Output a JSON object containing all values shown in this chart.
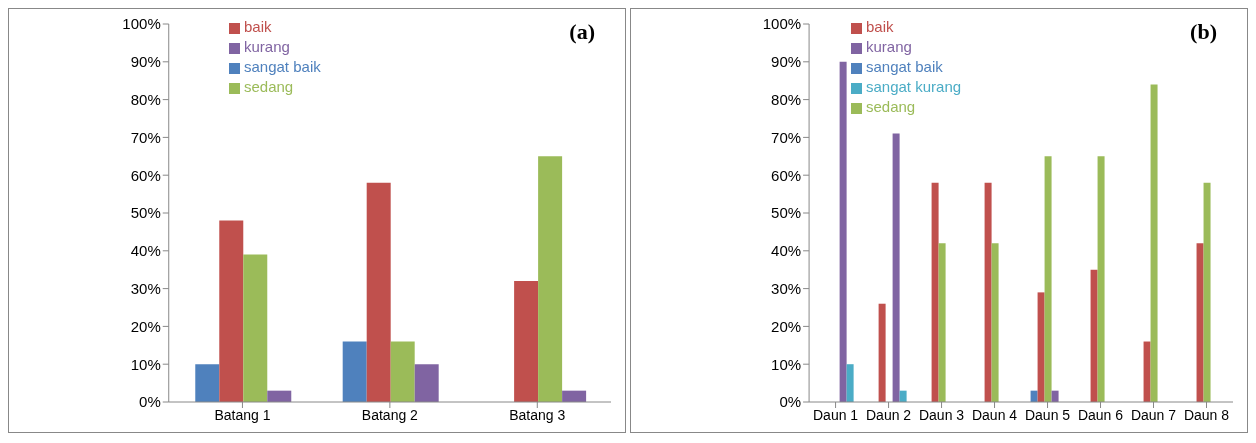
{
  "chart_data": [
    {
      "type": "bar",
      "annotations": [
        "(a)"
      ],
      "categories": [
        "Batang 1",
        "Batang 2",
        "Batang 3"
      ],
      "series": [
        {
          "name": "sangat baik",
          "color": "#4f81bd",
          "values": [
            10,
            16,
            0
          ]
        },
        {
          "name": "baik",
          "color": "#c0504d",
          "values": [
            48,
            58,
            32
          ]
        },
        {
          "name": "sedang",
          "color": "#9bbb59",
          "values": [
            39,
            16,
            65
          ]
        },
        {
          "name": "kurang",
          "color": "#8064a2",
          "values": [
            3,
            10,
            3
          ]
        }
      ],
      "ylim": [
        0,
        100
      ],
      "yticks": [
        {
          "value": 0,
          "label": "0%"
        },
        {
          "value": 10,
          "label": "10%"
        },
        {
          "value": 20,
          "label": "20%"
        },
        {
          "value": 30,
          "label": "30%"
        },
        {
          "value": 40,
          "label": "40%"
        },
        {
          "value": 50,
          "label": "50%"
        },
        {
          "value": 60,
          "label": "60%"
        },
        {
          "value": 70,
          "label": "70%"
        },
        {
          "value": 80,
          "label": "80%"
        },
        {
          "value": 90,
          "label": "90%"
        },
        {
          "value": 100,
          "label": "100%"
        }
      ],
      "grid": false,
      "legend": "top"
    },
    {
      "type": "bar",
      "annotations": [
        "(b)"
      ],
      "categories": [
        "Daun 1",
        "Daun 2",
        "Daun 3",
        "Daun 4",
        "Daun 5",
        "Daun 6",
        "Daun 7",
        "Daun 8"
      ],
      "series": [
        {
          "name": "sangat baik",
          "color": "#4f81bd",
          "values": [
            0,
            0,
            0,
            0,
            3,
            0,
            0,
            0
          ]
        },
        {
          "name": "baik",
          "color": "#c0504d",
          "values": [
            0,
            26,
            58,
            58,
            29,
            35,
            16,
            42
          ]
        },
        {
          "name": "sedang",
          "color": "#9bbb59",
          "values": [
            0,
            0,
            42,
            42,
            65,
            65,
            84,
            58
          ]
        },
        {
          "name": "kurang",
          "color": "#8064a2",
          "values": [
            90,
            71,
            0,
            0,
            3,
            0,
            0,
            0
          ]
        },
        {
          "name": "sangat kurang",
          "color": "#4bacc6",
          "values": [
            10,
            3,
            0,
            0,
            0,
            0,
            0,
            0
          ]
        }
      ],
      "ylim": [
        0,
        100
      ],
      "yticks": [
        {
          "value": 0,
          "label": "0%"
        },
        {
          "value": 10,
          "label": "10%"
        },
        {
          "value": 20,
          "label": "20%"
        },
        {
          "value": 30,
          "label": "30%"
        },
        {
          "value": 40,
          "label": "40%"
        },
        {
          "value": 50,
          "label": "50%"
        },
        {
          "value": 60,
          "label": "60%"
        },
        {
          "value": 70,
          "label": "70%"
        },
        {
          "value": 80,
          "label": "80%"
        },
        {
          "value": 90,
          "label": "90%"
        },
        {
          "value": 100,
          "label": "100%"
        }
      ],
      "grid": false,
      "legend": "top"
    }
  ]
}
